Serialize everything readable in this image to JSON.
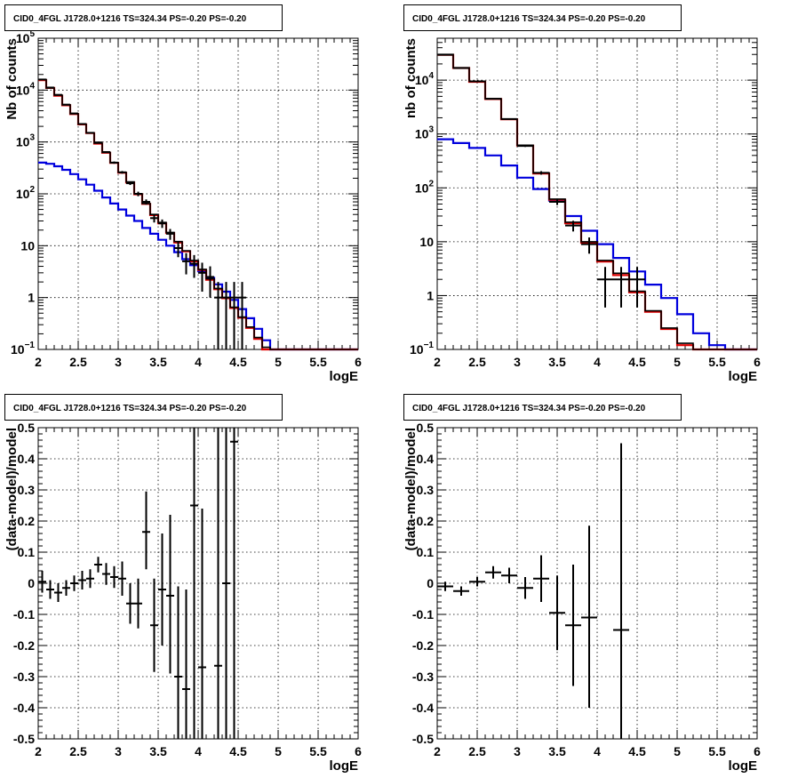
{
  "panel_title": "CID0_4FGL J1728.0+1216 TS=324.34 PS=-0.20 PS=-0.20",
  "colors": {
    "data": "#000000",
    "total_model": "#e00000",
    "source_model": "#0000dd"
  },
  "chart_data": [
    {
      "type": "line",
      "title": "CID0_4FGL J1728.0+1216 TS=324.34 PS=-0.20 PS=-0.20",
      "xlabel": "logE",
      "ylabel": "Nb of counts",
      "xlim": [
        2,
        6
      ],
      "ylim": [
        0.1,
        100000
      ],
      "yscale": "log",
      "grid": true,
      "x_ticks": [
        "2",
        "2.5",
        "3",
        "3.5",
        "4",
        "4.5",
        "5",
        "5.5",
        "6"
      ],
      "y_ticks": [
        {
          "v": 0.1,
          "base": "10",
          "exp": "−1"
        },
        {
          "v": 1,
          "base": "1",
          "exp": ""
        },
        {
          "v": 10,
          "base": "10",
          "exp": ""
        },
        {
          "v": 100,
          "base": "10",
          "exp": "2"
        },
        {
          "v": 1000,
          "base": "10",
          "exp": "3"
        },
        {
          "v": 10000,
          "base": "10",
          "exp": "4"
        },
        {
          "v": 100000,
          "base": "10",
          "exp": "5"
        }
      ],
      "bin_edges": [
        2.0,
        2.1,
        2.2,
        2.3,
        2.4,
        2.5,
        2.6,
        2.7,
        2.8,
        2.9,
        3.0,
        3.1,
        3.2,
        3.3,
        3.4,
        3.5,
        3.6,
        3.7,
        3.8,
        3.9,
        4.0,
        4.1,
        4.2,
        4.3,
        4.4,
        4.5,
        4.6,
        4.7,
        4.8,
        4.9,
        5.0,
        5.1,
        5.2,
        5.3,
        5.4,
        5.5,
        5.6,
        5.7,
        5.8,
        5.9,
        6.0
      ],
      "series": [
        {
          "values": [
            16000,
            11000,
            8000,
            5200,
            3500,
            2200,
            1500,
            950,
            630,
            400,
            260,
            170,
            100,
            65,
            40,
            28,
            18,
            12,
            8,
            5.2,
            3.5,
            2.3,
            1.5,
            1.0,
            0.65,
            0.42,
            0.27,
            0.17,
            0.11,
            0.1,
            0.1,
            0.1,
            0.1,
            0.1,
            0.1,
            0.1,
            0.1,
            0.1,
            0.1,
            0.1
          ]
        },
        {
          "values": [
            15500,
            11000,
            7800,
            5100,
            3450,
            2180,
            1480,
            930,
            620,
            395,
            255,
            165,
            98,
            64,
            39,
            27,
            17.5,
            11.5,
            7.8,
            5.0,
            3.4,
            2.2,
            1.45,
            0.97,
            0.63,
            0.41,
            0.26,
            0.16,
            0.1,
            0.1,
            0.1,
            0.1,
            0.1,
            0.1,
            0.1,
            0.1,
            0.1,
            0.1,
            0.1,
            0.1
          ]
        },
        {
          "values": [
            400,
            380,
            340,
            290,
            240,
            190,
            150,
            115,
            85,
            65,
            50,
            38,
            30,
            22,
            17,
            13,
            10,
            7.5,
            5.5,
            4.2,
            3.2,
            2.4,
            1.8,
            1.3,
            0.9,
            0.6,
            0.4,
            0.25,
            0.15,
            0.1,
            0.1,
            0.1,
            0.1,
            0.1,
            0.1,
            0.1,
            0.1,
            0.1,
            0.1,
            0.1
          ]
        }
      ],
      "points": [
        {
          "x": 2.05,
          "y": 16000,
          "ylo": 15800,
          "yhi": 16200
        },
        {
          "x": 2.15,
          "y": 11200,
          "ylo": 11050,
          "yhi": 11350
        },
        {
          "x": 2.25,
          "y": 8100,
          "ylo": 7950,
          "yhi": 8250
        },
        {
          "x": 2.35,
          "y": 5250,
          "ylo": 5150,
          "yhi": 5350
        },
        {
          "x": 2.45,
          "y": 3550,
          "ylo": 3480,
          "yhi": 3620
        },
        {
          "x": 2.55,
          "y": 2220,
          "ylo": 2170,
          "yhi": 2270
        },
        {
          "x": 2.65,
          "y": 1500,
          "ylo": 1460,
          "yhi": 1540
        },
        {
          "x": 2.75,
          "y": 980,
          "ylo": 950,
          "yhi": 1010
        },
        {
          "x": 2.85,
          "y": 640,
          "ylo": 615,
          "yhi": 665
        },
        {
          "x": 2.95,
          "y": 400,
          "ylo": 380,
          "yhi": 420
        },
        {
          "x": 3.05,
          "y": 260,
          "ylo": 245,
          "yhi": 275
        },
        {
          "x": 3.15,
          "y": 160,
          "ylo": 148,
          "yhi": 172
        },
        {
          "x": 3.25,
          "y": 100,
          "ylo": 90,
          "yhi": 110
        },
        {
          "x": 3.35,
          "y": 70,
          "ylo": 62,
          "yhi": 78
        },
        {
          "x": 3.45,
          "y": 34,
          "ylo": 28,
          "yhi": 40
        },
        {
          "x": 3.55,
          "y": 27,
          "ylo": 22,
          "yhi": 32
        },
        {
          "x": 3.65,
          "y": 17,
          "ylo": 13,
          "yhi": 21
        },
        {
          "x": 3.75,
          "y": 9,
          "ylo": 6,
          "yhi": 12
        },
        {
          "x": 3.85,
          "y": 5,
          "ylo": 2.8,
          "yhi": 7.2
        },
        {
          "x": 3.95,
          "y": 4.5,
          "ylo": 2.4,
          "yhi": 6.6
        },
        {
          "x": 4.05,
          "y": 3,
          "ylo": 1.3,
          "yhi": 4.7
        },
        {
          "x": 4.15,
          "y": 2.5,
          "ylo": 1.0,
          "yhi": 4.0
        },
        {
          "x": 4.25,
          "y": 1,
          "ylo": 0.1,
          "yhi": 2.0
        },
        {
          "x": 4.35,
          "y": 1,
          "ylo": 0.1,
          "yhi": 2.0
        },
        {
          "x": 4.45,
          "y": 1,
          "ylo": 0.1,
          "yhi": 2.0
        },
        {
          "x": 4.55,
          "y": 1,
          "ylo": 0.1,
          "yhi": 2.0
        }
      ]
    },
    {
      "type": "line",
      "title": "CID0_4FGL J1728.0+1216 TS=324.34 PS=-0.20 PS=-0.20",
      "xlabel": "logE",
      "ylabel": "nb of counts",
      "xlim": [
        2,
        6
      ],
      "ylim": [
        0.1,
        60000
      ],
      "yscale": "log",
      "grid": true,
      "x_ticks": [
        "2",
        "2.5",
        "3",
        "3.5",
        "4",
        "4.5",
        "5",
        "5.5",
        "6"
      ],
      "y_ticks": [
        {
          "v": 0.1,
          "base": "10",
          "exp": "−1"
        },
        {
          "v": 1,
          "base": "1",
          "exp": ""
        },
        {
          "v": 10,
          "base": "10",
          "exp": ""
        },
        {
          "v": 100,
          "base": "10",
          "exp": "2"
        },
        {
          "v": 1000,
          "base": "10",
          "exp": "3"
        },
        {
          "v": 10000,
          "base": "10",
          "exp": "4"
        }
      ],
      "bin_edges": [
        2.0,
        2.2,
        2.4,
        2.6,
        2.8,
        3.0,
        3.2,
        3.4,
        3.6,
        3.8,
        4.0,
        4.2,
        4.4,
        4.6,
        4.8,
        5.0,
        5.2,
        5.4,
        5.6,
        5.8,
        6.0
      ],
      "series": [
        {
          "values": [
            30000,
            17000,
            9500,
            4500,
            1900,
            620,
            190,
            62,
            23,
            10,
            4.5,
            2.6,
            1.2,
            0.52,
            0.25,
            0.13,
            0.1,
            0.1,
            0.1,
            0.1
          ]
        },
        {
          "values": [
            29500,
            16800,
            9300,
            4450,
            1880,
            610,
            185,
            60,
            22,
            9.5,
            4.3,
            2.4,
            1.15,
            0.5,
            0.24,
            0.12,
            0.1,
            0.1,
            0.1,
            0.1
          ]
        },
        {
          "values": [
            800,
            680,
            550,
            400,
            260,
            155,
            95,
            58,
            30,
            16,
            9,
            5,
            2.8,
            1.6,
            0.9,
            0.45,
            0.2,
            0.12,
            0.1,
            0.1
          ]
        }
      ],
      "points": [
        {
          "x": 2.1,
          "y": 29500,
          "ylo": 29300,
          "yhi": 29700
        },
        {
          "x": 2.3,
          "y": 16800,
          "ylo": 16650,
          "yhi": 16950
        },
        {
          "x": 2.5,
          "y": 9500,
          "ylo": 9400,
          "yhi": 9600
        },
        {
          "x": 2.7,
          "y": 4500,
          "ylo": 4430,
          "yhi": 4570
        },
        {
          "x": 2.9,
          "y": 1900,
          "ylo": 1850,
          "yhi": 1950
        },
        {
          "x": 3.1,
          "y": 600,
          "ylo": 575,
          "yhi": 625
        },
        {
          "x": 3.3,
          "y": 190,
          "ylo": 176,
          "yhi": 204
        },
        {
          "x": 3.5,
          "y": 55,
          "ylo": 48,
          "yhi": 62
        },
        {
          "x": 3.7,
          "y": 20,
          "ylo": 15.5,
          "yhi": 24.5
        },
        {
          "x": 3.9,
          "y": 9,
          "ylo": 6,
          "yhi": 12
        },
        {
          "x": 4.1,
          "y": 2,
          "ylo": 0.6,
          "yhi": 3.4
        },
        {
          "x": 4.3,
          "y": 2,
          "ylo": 0.6,
          "yhi": 3.4
        },
        {
          "x": 4.5,
          "y": 2,
          "ylo": 0.6,
          "yhi": 3.4
        }
      ]
    },
    {
      "type": "scatter",
      "title": "CID0_4FGL J1728.0+1216 TS=324.34 PS=-0.20 PS=-0.20",
      "xlabel": "logE",
      "ylabel": "(data-model)/model",
      "xlim": [
        2,
        6
      ],
      "ylim": [
        -0.5,
        0.5
      ],
      "grid": true,
      "x_ticks": [
        "2",
        "2.5",
        "3",
        "3.5",
        "4",
        "4.5",
        "5",
        "5.5",
        "6"
      ],
      "y_ticks": [
        "-0.5",
        "-0.4",
        "-0.3",
        "-0.2",
        "-0.1",
        "0",
        "0.1",
        "0.2",
        "0.3",
        "0.4",
        "0.5"
      ],
      "xerr": 0.05,
      "points": [
        {
          "x": 2.05,
          "y": 0.005,
          "ylo": -0.03,
          "yhi": 0.04
        },
        {
          "x": 2.15,
          "y": -0.02,
          "ylo": -0.05,
          "yhi": 0.01
        },
        {
          "x": 2.25,
          "y": -0.03,
          "ylo": -0.06,
          "yhi": 0.0
        },
        {
          "x": 2.35,
          "y": -0.015,
          "ylo": -0.04,
          "yhi": 0.01
        },
        {
          "x": 2.45,
          "y": 0.0,
          "ylo": -0.025,
          "yhi": 0.025
        },
        {
          "x": 2.55,
          "y": 0.01,
          "ylo": -0.02,
          "yhi": 0.04
        },
        {
          "x": 2.65,
          "y": 0.015,
          "ylo": -0.015,
          "yhi": 0.045
        },
        {
          "x": 2.75,
          "y": 0.06,
          "ylo": 0.035,
          "yhi": 0.085
        },
        {
          "x": 2.85,
          "y": 0.03,
          "ylo": -0.005,
          "yhi": 0.065
        },
        {
          "x": 2.95,
          "y": 0.02,
          "ylo": -0.015,
          "yhi": 0.055
        },
        {
          "x": 3.05,
          "y": 0.015,
          "ylo": -0.04,
          "yhi": 0.07
        },
        {
          "x": 3.15,
          "y": -0.065,
          "ylo": -0.13,
          "yhi": 0.0
        },
        {
          "x": 3.25,
          "y": -0.065,
          "ylo": -0.145,
          "yhi": 0.015
        },
        {
          "x": 3.35,
          "y": 0.165,
          "ylo": 0.045,
          "yhi": 0.295
        },
        {
          "x": 3.45,
          "y": -0.135,
          "ylo": -0.285,
          "yhi": 0.015
        },
        {
          "x": 3.55,
          "y": -0.02,
          "ylo": -0.2,
          "yhi": 0.16
        },
        {
          "x": 3.65,
          "y": -0.04,
          "ylo": -0.29,
          "yhi": 0.22
        },
        {
          "x": 3.75,
          "y": -0.3,
          "ylo": -0.5,
          "yhi": -0.01
        },
        {
          "x": 3.85,
          "y": -0.34,
          "ylo": -0.5,
          "yhi": -0.02
        },
        {
          "x": 3.95,
          "y": 0.25,
          "ylo": -0.5,
          "yhi": 0.5
        },
        {
          "x": 4.05,
          "y": -0.27,
          "ylo": -0.5,
          "yhi": 0.24
        },
        {
          "x": 4.25,
          "y": -0.265,
          "ylo": -0.5,
          "yhi": 0.5
        },
        {
          "x": 4.35,
          "y": 0.0,
          "ylo": -0.5,
          "yhi": 0.5
        },
        {
          "x": 4.45,
          "y": 0.455,
          "ylo": -0.5,
          "yhi": 0.5
        }
      ]
    },
    {
      "type": "scatter",
      "title": "CID0_4FGL J1728.0+1216 TS=324.34 PS=-0.20 PS=-0.20",
      "xlabel": "logE",
      "ylabel": "(data-model)/model",
      "xlim": [
        2,
        6
      ],
      "ylim": [
        -0.5,
        0.5
      ],
      "grid": true,
      "x_ticks": [
        "2",
        "2.5",
        "3",
        "3.5",
        "4",
        "4.5",
        "5",
        "5.5",
        "6"
      ],
      "y_ticks": [
        "-0.5",
        "-0.4",
        "-0.3",
        "-0.2",
        "-0.1",
        "0",
        "0.1",
        "0.2",
        "0.3",
        "0.4",
        "0.5"
      ],
      "xerr": 0.1,
      "points": [
        {
          "x": 2.1,
          "y": -0.01,
          "ylo": -0.025,
          "yhi": 0.005
        },
        {
          "x": 2.3,
          "y": -0.025,
          "ylo": -0.04,
          "yhi": -0.01
        },
        {
          "x": 2.5,
          "y": 0.005,
          "ylo": -0.01,
          "yhi": 0.02
        },
        {
          "x": 2.7,
          "y": 0.035,
          "ylo": 0.015,
          "yhi": 0.055
        },
        {
          "x": 2.9,
          "y": 0.025,
          "ylo": 0.0,
          "yhi": 0.05
        },
        {
          "x": 3.1,
          "y": -0.015,
          "ylo": -0.05,
          "yhi": 0.02
        },
        {
          "x": 3.3,
          "y": 0.015,
          "ylo": -0.06,
          "yhi": 0.09
        },
        {
          "x": 3.5,
          "y": -0.095,
          "ylo": -0.215,
          "yhi": 0.025
        },
        {
          "x": 3.7,
          "y": -0.135,
          "ylo": -0.33,
          "yhi": 0.06
        },
        {
          "x": 3.9,
          "y": -0.11,
          "ylo": -0.4,
          "yhi": 0.185
        },
        {
          "x": 4.3,
          "y": -0.15,
          "ylo": -0.5,
          "yhi": 0.45
        }
      ]
    }
  ]
}
